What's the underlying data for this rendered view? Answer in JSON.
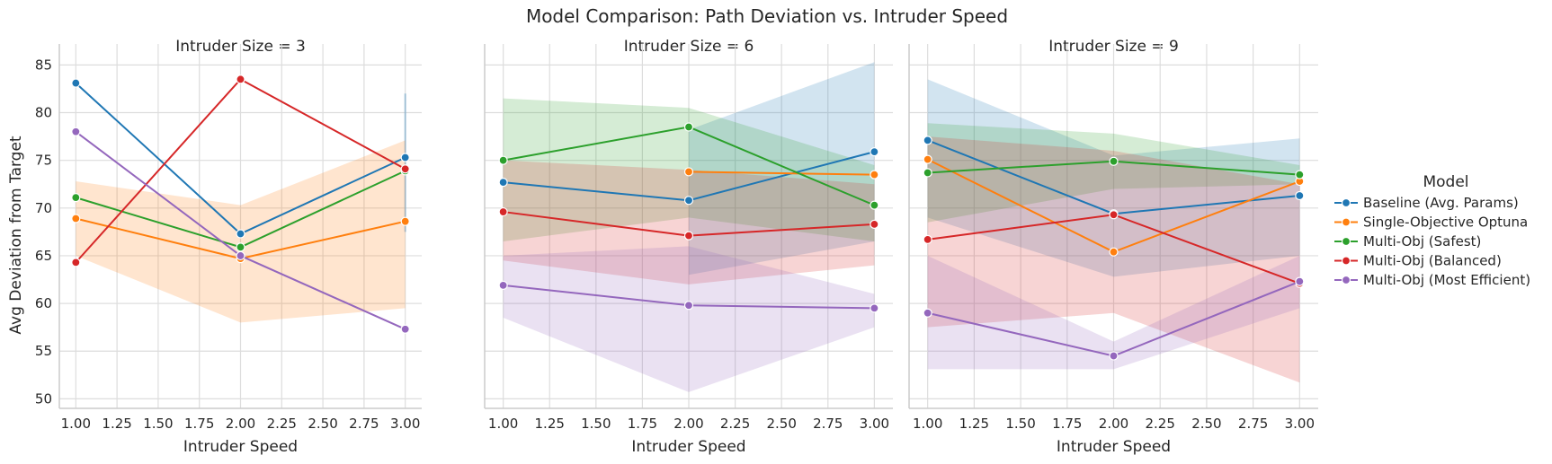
{
  "chart_data": {
    "type": "line",
    "title": "Model Comparison: Path Deviation vs. Intruder Speed",
    "xlabel": "Intruder Speed",
    "ylabel": "Avg Deviation from Target",
    "xlim": [
      0.9,
      3.1
    ],
    "ylim": [
      49,
      87.2
    ],
    "xticks": [
      "1.00",
      "1.25",
      "1.50",
      "1.75",
      "2.00",
      "2.25",
      "2.50",
      "2.75",
      "3.00"
    ],
    "yticks": [
      "50",
      "55",
      "60",
      "65",
      "70",
      "75",
      "80",
      "85"
    ],
    "grid": true,
    "legend": {
      "title": "Model",
      "placement": "right",
      "entries": [
        "Baseline (Avg. Params)",
        "Single-Objective Optuna",
        "Multi-Obj (Safest)",
        "Multi-Obj (Balanced)",
        "Multi-Obj (Most Efficient)"
      ]
    },
    "colors": {
      "Baseline (Avg. Params)": "#1f77b4",
      "Single-Objective Optuna": "#ff7f0e",
      "Multi-Obj (Safest)": "#2ca02c",
      "Multi-Obj (Balanced)": "#d62728",
      "Multi-Obj (Most Efficient)": "#9467bd"
    },
    "panels": [
      {
        "title": "Intruder Size = 3",
        "series": [
          {
            "name": "Baseline (Avg. Params)",
            "x": [
              1,
              2,
              3
            ],
            "y": [
              83.1,
              67.3,
              75.3
            ],
            "lower": [
              null,
              null,
              67.5
            ],
            "upper": [
              null,
              null,
              82.0
            ]
          },
          {
            "name": "Single-Objective Optuna",
            "x": [
              1,
              2,
              3
            ],
            "y": [
              68.9,
              64.7,
              68.6
            ],
            "lower": [
              65.0,
              58.0,
              59.5
            ],
            "upper": [
              72.8,
              70.3,
              77.1
            ]
          },
          {
            "name": "Multi-Obj (Safest)",
            "x": [
              1,
              2,
              3
            ],
            "y": [
              71.1,
              65.9,
              73.9
            ],
            "lower": [
              null,
              null,
              null
            ],
            "upper": [
              null,
              null,
              null
            ]
          },
          {
            "name": "Multi-Obj (Balanced)",
            "x": [
              1,
              2,
              3
            ],
            "y": [
              64.3,
              83.5,
              74.1
            ],
            "lower": [
              null,
              null,
              null
            ],
            "upper": [
              null,
              null,
              null
            ]
          },
          {
            "name": "Multi-Obj (Most Efficient)",
            "x": [
              1,
              2,
              3
            ],
            "y": [
              78.0,
              65.0,
              57.3
            ],
            "lower": [
              null,
              null,
              null
            ],
            "upper": [
              null,
              null,
              null
            ]
          }
        ]
      },
      {
        "title": "Intruder Size = 6",
        "series": [
          {
            "name": "Baseline (Avg. Params)",
            "x": [
              1,
              2,
              3
            ],
            "y": [
              72.7,
              70.8,
              75.9
            ],
            "lower": [
              null,
              63.0,
              66.5
            ],
            "upper": [
              null,
              78.2,
              85.3
            ]
          },
          {
            "name": "Single-Objective Optuna",
            "x": [
              2,
              3
            ],
            "y": [
              73.8,
              73.5
            ],
            "lower": [
              null,
              null
            ],
            "upper": [
              null,
              null
            ]
          },
          {
            "name": "Multi-Obj (Safest)",
            "x": [
              1,
              2,
              3
            ],
            "y": [
              75.0,
              78.5,
              70.3
            ],
            "lower": [
              66.5,
              69.0,
              66.5
            ],
            "upper": [
              81.5,
              80.5,
              74.5
            ]
          },
          {
            "name": "Multi-Obj (Balanced)",
            "x": [
              1,
              2,
              3
            ],
            "y": [
              69.6,
              67.1,
              68.3
            ],
            "lower": [
              64.5,
              62.0,
              64.0
            ],
            "upper": [
              75.0,
              74.0,
              72.5
            ]
          },
          {
            "name": "Multi-Obj (Most Efficient)",
            "x": [
              1,
              2,
              3
            ],
            "y": [
              61.9,
              59.8,
              59.5
            ],
            "lower": [
              58.5,
              50.7,
              57.5
            ],
            "upper": [
              65.0,
              66.0,
              61.0
            ]
          }
        ]
      },
      {
        "title": "Intruder Size = 9",
        "series": [
          {
            "name": "Baseline (Avg. Params)",
            "x": [
              1,
              2,
              3
            ],
            "y": [
              77.1,
              69.4,
              71.3
            ],
            "lower": [
              69.0,
              62.8,
              65.0
            ],
            "upper": [
              83.5,
              75.5,
              77.3
            ]
          },
          {
            "name": "Single-Objective Optuna",
            "x": [
              1,
              2,
              3
            ],
            "y": [
              75.1,
              65.4,
              72.8
            ],
            "lower": [
              null,
              null,
              null
            ],
            "upper": [
              null,
              null,
              null
            ]
          },
          {
            "name": "Multi-Obj (Safest)",
            "x": [
              1,
              2,
              3
            ],
            "y": [
              73.7,
              74.9,
              73.5
            ],
            "lower": [
              68.5,
              72.0,
              72.5
            ],
            "upper": [
              78.9,
              77.8,
              74.5
            ]
          },
          {
            "name": "Multi-Obj (Balanced)",
            "x": [
              1,
              2,
              3
            ],
            "y": [
              66.7,
              69.3,
              62.1
            ],
            "lower": [
              57.5,
              59.0,
              51.7
            ],
            "upper": [
              77.5,
              76.0,
              72.5
            ]
          },
          {
            "name": "Multi-Obj (Most Efficient)",
            "x": [
              1,
              2,
              3
            ],
            "y": [
              59.0,
              54.5,
              62.3
            ],
            "lower": [
              53.1,
              53.1,
              59.5
            ],
            "upper": [
              65.0,
              56.0,
              65.0
            ]
          }
        ]
      }
    ]
  }
}
